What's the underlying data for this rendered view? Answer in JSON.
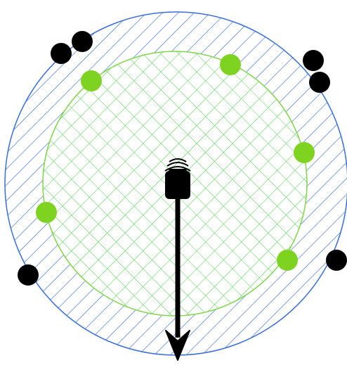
{
  "diagram": {
    "colors": {
      "outer_ring_stroke": "#3a6fd8",
      "outer_ring_hatch": "#3a6fd8",
      "inner_disc_stroke": "#7fd64a",
      "inner_disc_hatch": "#4ad04a",
      "green_points": "#7ed321",
      "black_points": "#000000",
      "arrow": "#000000",
      "background": "#ffffff"
    },
    "icons": {
      "center": "wireless-device-icon",
      "arrow": "arrow-down"
    }
  }
}
